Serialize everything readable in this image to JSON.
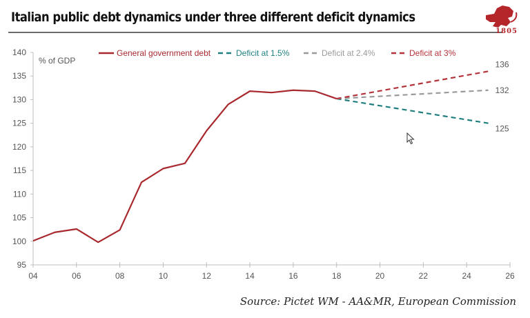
{
  "header": {
    "title": "Italian public debt dynamics under three different deficit dynamics",
    "logo_year": "1805"
  },
  "footer": {
    "source": "Source: Pictet WM - AA&MR, European Commission"
  },
  "chart_data": {
    "type": "line",
    "title": "Italian public debt dynamics under three different deficit dynamics",
    "ylabel": "% of GDP",
    "xlabel": "",
    "xlim": [
      2004,
      2026
    ],
    "ylim": [
      95,
      140
    ],
    "yticks": [
      95,
      100,
      105,
      110,
      115,
      120,
      125,
      130,
      135,
      140
    ],
    "xticks": [
      2004,
      2006,
      2008,
      2010,
      2012,
      2014,
      2016,
      2018,
      2020,
      2022,
      2024,
      2026
    ],
    "xtick_labels": [
      "04",
      "06",
      "08",
      "10",
      "12",
      "14",
      "16",
      "18",
      "20",
      "22",
      "24",
      "26"
    ],
    "grid": false,
    "legend_position": "top",
    "series": [
      {
        "name": "General government debt",
        "style": "solid",
        "color": "#a8282e",
        "x": [
          2004,
          2005,
          2006,
          2007,
          2008,
          2009,
          2010,
          2011,
          2012,
          2013,
          2014,
          2015,
          2016,
          2017,
          2018
        ],
        "values": [
          100.1,
          101.9,
          102.6,
          99.8,
          102.4,
          112.5,
          115.4,
          116.5,
          123.4,
          129.0,
          131.8,
          131.5,
          132.0,
          131.8,
          130.2
        ]
      },
      {
        "name": "Deficit at 1.5%",
        "style": "dashed",
        "color": "#1f7f7f",
        "x": [
          2018,
          2025
        ],
        "values": [
          130.2,
          125
        ],
        "end_label": "125"
      },
      {
        "name": "Deficit at 2.4%",
        "style": "dashed",
        "color": "#9a9a9a",
        "x": [
          2018,
          2025
        ],
        "values": [
          130.2,
          132
        ],
        "end_label": "132"
      },
      {
        "name": "Deficit at 3%",
        "style": "dashed",
        "color": "#b5323a",
        "x": [
          2018,
          2025
        ],
        "values": [
          130.2,
          136
        ],
        "end_label": "136"
      }
    ]
  }
}
